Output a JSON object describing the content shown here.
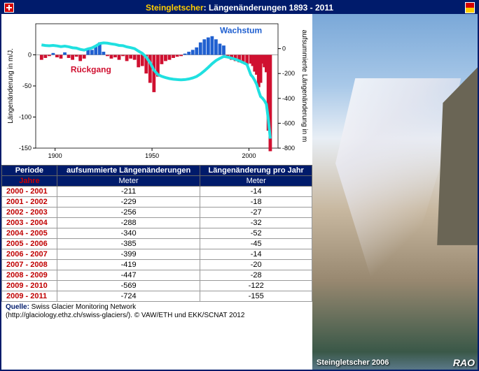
{
  "header": {
    "title_highlight": "Steingletscher",
    "title_rest": ": Längenänderungen  1893 - 2011"
  },
  "chart": {
    "type": "bar+line",
    "x_axis": {
      "min": 1890,
      "max": 2015,
      "ticks": [
        1900,
        1950,
        2000
      ]
    },
    "y_left": {
      "label": "Längenänderung in m/J.",
      "min": -150,
      "max": 50,
      "ticks": [
        0,
        -50,
        -100,
        -150
      ]
    },
    "y_right": {
      "label": "aufsummierte Längenänderung in m",
      "min": -800,
      "max": 200,
      "ticks": [
        0,
        -200,
        -400,
        -600,
        -800
      ]
    },
    "growth_label": "Wachstum",
    "decline_label": "Rückgang",
    "bar_pos_color": "#2060d0",
    "bar_neg_color": "#d01030",
    "line_color": "#20e0e0",
    "background": "#ffffff",
    "years": [
      1893,
      1895,
      1897,
      1899,
      1901,
      1903,
      1905,
      1907,
      1909,
      1911,
      1913,
      1915,
      1917,
      1919,
      1921,
      1923,
      1925,
      1927,
      1929,
      1931,
      1933,
      1935,
      1937,
      1939,
      1941,
      1943,
      1945,
      1947,
      1949,
      1951,
      1953,
      1955,
      1957,
      1959,
      1961,
      1963,
      1965,
      1967,
      1969,
      1971,
      1973,
      1975,
      1977,
      1979,
      1981,
      1983,
      1985,
      1987,
      1989,
      1991,
      1993,
      1995,
      1997,
      1999,
      2001,
      2002,
      2003,
      2004,
      2005,
      2006,
      2007,
      2008,
      2009,
      2010,
      2011
    ],
    "annual": [
      -8,
      -5,
      -2,
      3,
      -4,
      -6,
      4,
      -5,
      -8,
      -3,
      -10,
      -6,
      10,
      8,
      15,
      20,
      5,
      -2,
      -6,
      -4,
      -8,
      -2,
      -10,
      -6,
      -8,
      -20,
      -18,
      -30,
      -45,
      -60,
      -35,
      -15,
      -10,
      -8,
      -5,
      -3,
      -2,
      2,
      5,
      8,
      12,
      20,
      25,
      28,
      30,
      25,
      18,
      15,
      -5,
      -8,
      -10,
      -12,
      -14,
      -16,
      -14,
      -18,
      -27,
      -32,
      -52,
      -45,
      -14,
      -20,
      -28,
      -122,
      -155
    ],
    "cumulative": [
      30,
      25,
      23,
      26,
      22,
      16,
      20,
      15,
      7,
      4,
      -6,
      -12,
      -2,
      6,
      21,
      41,
      46,
      44,
      38,
      34,
      26,
      24,
      14,
      8,
      0,
      -20,
      -38,
      -68,
      -113,
      -173,
      -208,
      -223,
      -233,
      -241,
      -246,
      -249,
      -251,
      -249,
      -244,
      -236,
      -224,
      -204,
      -179,
      -151,
      -121,
      -96,
      -78,
      -63,
      -68,
      -76,
      -86,
      -98,
      -112,
      -128,
      -211,
      -229,
      -256,
      -288,
      -340,
      -385,
      -399,
      -419,
      -447,
      -569,
      -724
    ]
  },
  "table": {
    "headers": {
      "col1": "Periode",
      "col2": "aufsummierte Längenänderungen",
      "col3": "Längenänderung  pro Jahr"
    },
    "subheaders": {
      "col1": "Jahre",
      "col2": "Meter",
      "col3": "Meter"
    },
    "rows": [
      {
        "period": "2000 - 2001",
        "cum": "-211",
        "annual": "-14"
      },
      {
        "period": "2001 - 2002",
        "cum": "-229",
        "annual": "-18"
      },
      {
        "period": "2002 - 2003",
        "cum": "-256",
        "annual": "-27"
      },
      {
        "period": "2003 - 2004",
        "cum": "-288",
        "annual": "-32"
      },
      {
        "period": "2004 - 2005",
        "cum": "-340",
        "annual": "-52"
      },
      {
        "period": "2005 - 2006",
        "cum": "-385",
        "annual": "-45"
      },
      {
        "period": "2006 - 2007",
        "cum": "-399",
        "annual": "-14"
      },
      {
        "period": "2007 - 2008",
        "cum": "-419",
        "annual": "-20"
      },
      {
        "period": "2008 - 2009",
        "cum": "-447",
        "annual": "-28"
      },
      {
        "period": "2009 - 2010",
        "cum": "-569",
        "annual": "-122"
      },
      {
        "period": "2009 - 2011",
        "cum": "-724",
        "annual": "-155"
      }
    ]
  },
  "photo": {
    "label": "Steingletscher 2006",
    "credit": "RAO"
  },
  "footer": {
    "source_label": "Quelle:",
    "source_name": " Swiss Glacier Monitoring Network",
    "source_url": "(http://glaciology.ethz.ch/swiss-glaciers/). © VAW/ETH und EKK/SCNAT 2012"
  }
}
